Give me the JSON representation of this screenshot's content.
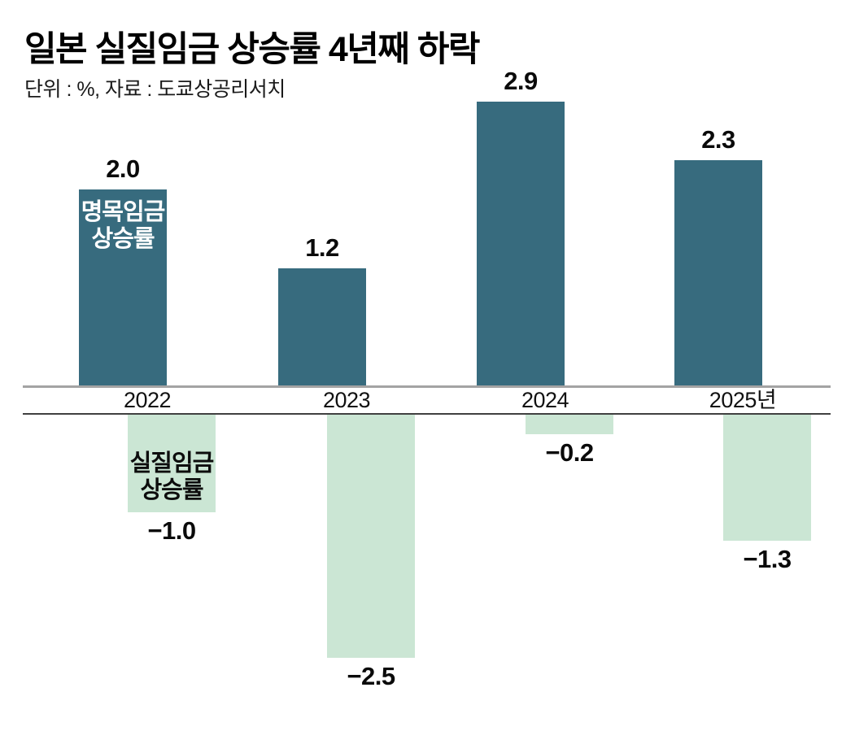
{
  "header": {
    "title": "일본 실질임금 상승률 4년째 하락",
    "subtitle": "단위 : %, 자료 : 도쿄상공리서치"
  },
  "colors": {
    "nominal_bar": "#376b7e",
    "real_bar": "#cbe6d4",
    "zero_axis_line": "#a3a3a3",
    "lower_axis_line": "#404040",
    "nominal_in_bar_label": "#ffffff",
    "real_in_bar_label": "#0d0d0d",
    "value_label": "#0a0a0a",
    "title_text": "#000000"
  },
  "chart_data": {
    "type": "bar",
    "title": "일본 실질임금 상승률 4년째 하락",
    "subtitle": "단위 : %, 자료 : 도쿄상공리서치",
    "unit": "%",
    "source": "도쿄상공리서치",
    "categories": [
      "2022",
      "2023",
      "2024",
      "2025년"
    ],
    "series": [
      {
        "name": "명목임금 상승률",
        "in_bar_label_lines": [
          "명목임금",
          "상승률"
        ],
        "values": [
          2.0,
          1.2,
          2.9,
          2.3
        ],
        "value_labels": [
          "2.0",
          "1.2",
          "2.9",
          "2.3"
        ],
        "color": "#376b7e"
      },
      {
        "name": "실질임금 상승률",
        "in_bar_label_lines": [
          "실질임금",
          "상승률"
        ],
        "values": [
          -1.0,
          -2.5,
          -0.2,
          -1.3
        ],
        "value_labels": [
          "−1.0",
          "−2.5",
          "−0.2",
          "−1.3"
        ],
        "color": "#cbe6d4"
      }
    ],
    "ylim": [
      -2.5,
      2.9
    ],
    "grid": false,
    "legend_position": "in-bar-first-group",
    "value_labels_shown": true
  }
}
